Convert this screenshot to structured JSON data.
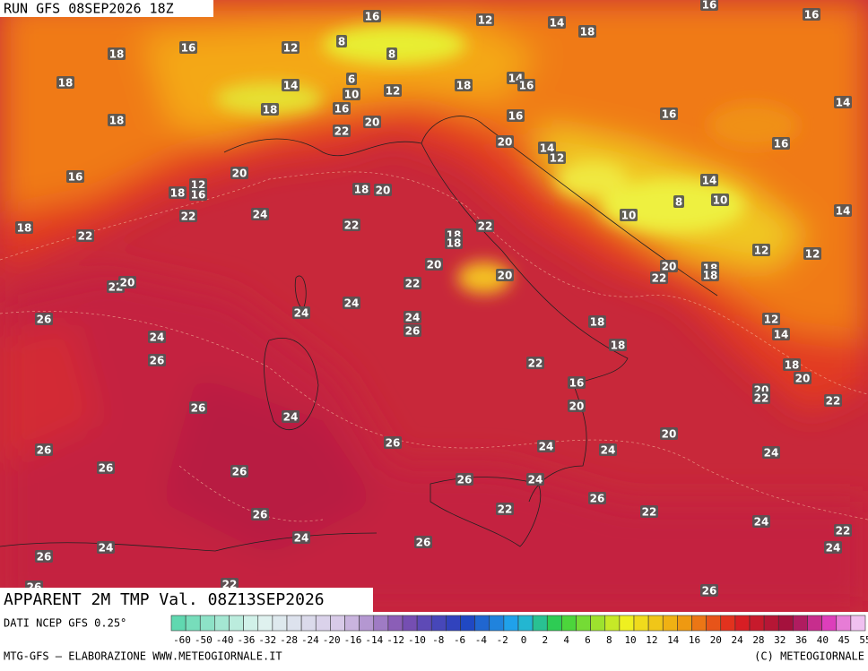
{
  "header": {
    "run": "RUN GFS 08SEP2026 18Z"
  },
  "footer": {
    "title": "APPARENT 2M TMP Val. 08Z13SEP2026",
    "source": "DATI NCEP GFS 0.25°",
    "credit_left": "MTG-GFS — ELABORAZIONE WWW.METEOGIORNALE.IT",
    "credit_right": "(C) METEOGIORNALE"
  },
  "colorbar": {
    "ticks": [
      -60,
      -50,
      -40,
      -36,
      -32,
      -28,
      -24,
      -20,
      -16,
      -14,
      -12,
      -10,
      -8,
      -6,
      -4,
      -2,
      0,
      2,
      4,
      6,
      8,
      10,
      12,
      14,
      16,
      20,
      24,
      28,
      32,
      36,
      40,
      45,
      55
    ]
  },
  "map_labels": [
    "16",
    "12",
    "14",
    "18",
    "16",
    "16",
    "16",
    "18",
    "12",
    "8",
    "8",
    "18",
    "14",
    "6",
    "10",
    "12",
    "18",
    "14",
    "16",
    "18",
    "18",
    "16",
    "20",
    "16",
    "16",
    "14",
    "22",
    "20",
    "14",
    "12",
    "16",
    "20",
    "16",
    "18",
    "12",
    "16",
    "18",
    "20",
    "14",
    "10",
    "8",
    "10",
    "22",
    "24",
    "22",
    "22",
    "14",
    "18",
    "22",
    "18",
    "18",
    "12",
    "12",
    "20",
    "20",
    "18",
    "18",
    "22",
    "20",
    "22",
    "20",
    "22",
    "24",
    "24",
    "26",
    "24",
    "26",
    "18",
    "12",
    "14",
    "24",
    "18",
    "26",
    "22",
    "18",
    "20",
    "16",
    "20",
    "22",
    "22",
    "26",
    "20",
    "24",
    "20",
    "26",
    "24",
    "24",
    "26",
    "24",
    "26",
    "26",
    "26",
    "24",
    "26",
    "22",
    "22",
    "26",
    "24",
    "22",
    "24",
    "26",
    "24",
    "24",
    "26",
    "26",
    "22",
    "26"
  ]
}
